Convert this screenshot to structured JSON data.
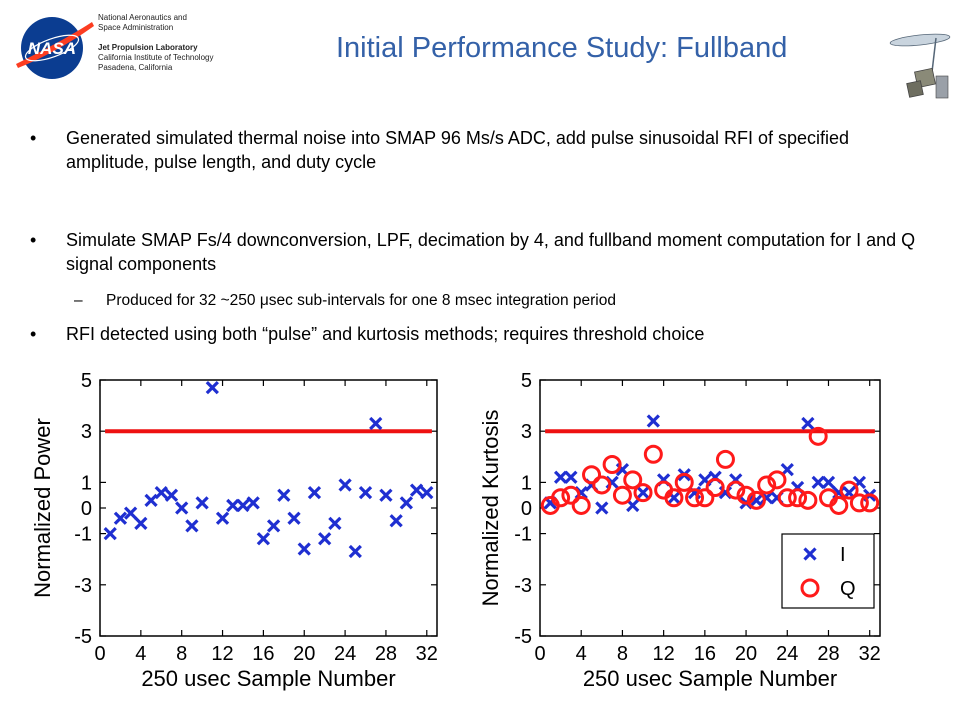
{
  "header": {
    "org_lines": [
      "National Aeronautics and",
      "Space Administration"
    ],
    "jpl_name": "Jet Propulsion Laboratory",
    "jpl_lines": [
      "California Institute of Technology",
      "Pasadena, California"
    ],
    "logo_text": "NASA",
    "title": "Initial Performance Study: Fullband"
  },
  "bullets": [
    "Generated simulated thermal noise into SMAP 96 Ms/s ADC, add pulse sinusoidal RFI of specified amplitude, pulse length, and duty cycle",
    "Simulate SMAP Fs/4 downconversion, LPF, decimation by 4, and fullband moment computation for I and Q signal components",
    "RFI detected using both “pulse” and kurtosis methods; requires threshold choice"
  ],
  "sub_bullet": "Produced for 32 ~250 μsec sub-intervals for one 8 msec integration period",
  "colors": {
    "title": "#3461a8",
    "marker_i": "#1f2fd1",
    "marker_q": "#ff1a1a",
    "threshold": "#ee1111"
  },
  "chart_data": [
    {
      "type": "scatter",
      "xlabel": "250 usec Sample Number",
      "ylabel": "Normalized Power",
      "xlim": [
        0,
        33
      ],
      "ylim": [
        -5,
        5
      ],
      "xticks": [
        0,
        4,
        8,
        12,
        16,
        20,
        24,
        28,
        32
      ],
      "yticks": [
        -5,
        -3,
        -1,
        0,
        1,
        3,
        5
      ],
      "grid": false,
      "threshold": 3,
      "series": [
        {
          "marker": "x",
          "x": [
            1,
            2,
            3,
            4,
            5,
            6,
            7,
            8,
            9,
            10,
            11,
            12,
            13,
            14,
            15,
            16,
            17,
            18,
            19,
            20,
            21,
            22,
            23,
            24,
            25,
            26,
            27,
            28,
            29,
            30,
            31,
            32
          ],
          "y": [
            -1.0,
            -0.4,
            -0.2,
            -0.6,
            0.3,
            0.6,
            0.5,
            0.0,
            -0.7,
            0.2,
            4.7,
            -0.4,
            0.1,
            0.1,
            0.2,
            -1.2,
            -0.7,
            0.5,
            -0.4,
            -1.6,
            0.6,
            -1.2,
            -0.6,
            0.9,
            -1.7,
            0.6,
            3.3,
            0.5,
            -0.5,
            0.2,
            0.7,
            0.6
          ]
        }
      ]
    },
    {
      "type": "scatter",
      "xlabel": "250 usec Sample Number",
      "ylabel": "Normalized Kurtosis",
      "xlim": [
        0,
        33
      ],
      "ylim": [
        -5,
        5
      ],
      "xticks": [
        0,
        4,
        8,
        12,
        16,
        20,
        24,
        28,
        32
      ],
      "yticks": [
        -5,
        -3,
        -1,
        0,
        1,
        3,
        5
      ],
      "grid": false,
      "threshold": 3,
      "legend": "bottom-right",
      "series": [
        {
          "name": "I",
          "marker": "x",
          "x": [
            1,
            2,
            3,
            4,
            5,
            6,
            7,
            8,
            9,
            10,
            11,
            12,
            13,
            14,
            15,
            16,
            17,
            18,
            19,
            20,
            21,
            22,
            23,
            24,
            25,
            26,
            27,
            28,
            29,
            30,
            31,
            32
          ],
          "y": [
            0.2,
            1.2,
            1.2,
            0.6,
            0.9,
            0.0,
            1.0,
            1.5,
            0.1,
            0.6,
            3.4,
            1.1,
            0.4,
            1.3,
            0.6,
            1.1,
            1.2,
            0.6,
            1.1,
            0.2,
            0.3,
            0.4,
            0.4,
            1.5,
            0.8,
            3.3,
            1.0,
            1.0,
            0.6,
            0.6,
            1.0,
            0.5
          ]
        },
        {
          "name": "Q",
          "marker": "o",
          "x": [
            1,
            2,
            3,
            4,
            5,
            6,
            7,
            8,
            9,
            10,
            11,
            12,
            13,
            14,
            15,
            16,
            17,
            18,
            19,
            20,
            21,
            22,
            23,
            24,
            25,
            26,
            27,
            28,
            29,
            30,
            31,
            32
          ],
          "y": [
            0.1,
            0.4,
            0.5,
            0.1,
            1.3,
            0.9,
            1.7,
            0.5,
            1.1,
            0.6,
            2.1,
            0.7,
            0.4,
            1.0,
            0.4,
            0.4,
            0.8,
            1.9,
            0.7,
            0.5,
            0.3,
            0.9,
            1.1,
            0.4,
            0.4,
            0.3,
            2.8,
            0.4,
            0.1,
            0.7,
            0.2,
            0.2
          ]
        }
      ]
    }
  ]
}
